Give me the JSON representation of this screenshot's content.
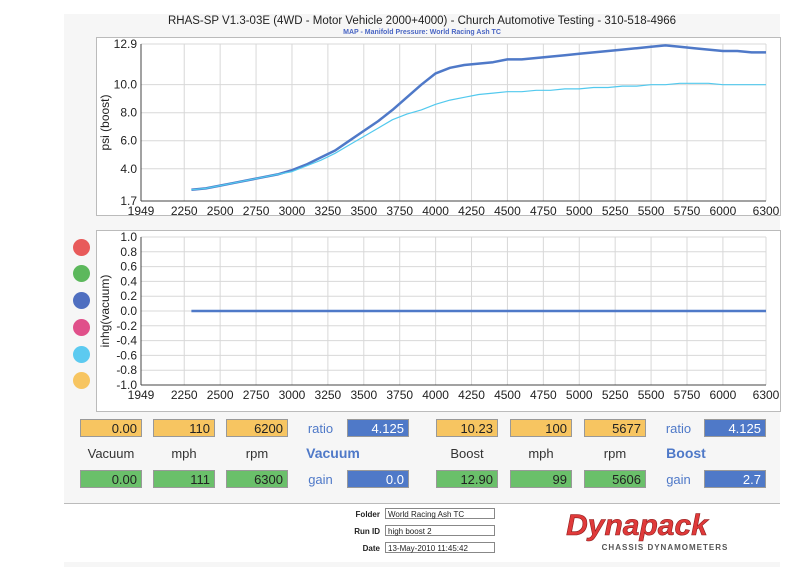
{
  "header": {
    "title": "RHAS-SP V1.3-03E  (4WD - Motor Vehicle 2000+4000) - Church Automotive Testing - 310-518-4966",
    "subtitle": "MAP - Manifold Pressure: World Racing Ash TC"
  },
  "chart_data": [
    {
      "type": "line",
      "ylabel": "psi (boost)",
      "xlim": [
        1949,
        6300
      ],
      "ylim": [
        1.7,
        12.9
      ],
      "x_ticks": [
        1949,
        2250,
        2500,
        2750,
        3000,
        3250,
        3500,
        3750,
        4000,
        4250,
        4500,
        4750,
        5000,
        5250,
        5500,
        5750,
        6000,
        6300
      ],
      "y_ticks": [
        1.7,
        4.0,
        6.0,
        8.0,
        10.0,
        12.9
      ],
      "grid": true,
      "series": [
        {
          "color": "#4f79c8",
          "x": [
            2300,
            2400,
            2500,
            2600,
            2700,
            2800,
            2900,
            3000,
            3100,
            3200,
            3300,
            3400,
            3500,
            3600,
            3700,
            3800,
            3900,
            4000,
            4100,
            4200,
            4300,
            4400,
            4500,
            4600,
            4700,
            4800,
            4900,
            5000,
            5100,
            5200,
            5300,
            5400,
            5500,
            5600,
            5700,
            5800,
            5900,
            6000,
            6100,
            6200,
            6300
          ],
          "y": [
            2.5,
            2.6,
            2.8,
            3.0,
            3.2,
            3.4,
            3.6,
            3.9,
            4.3,
            4.8,
            5.3,
            6.0,
            6.7,
            7.4,
            8.2,
            9.1,
            10.0,
            10.8,
            11.2,
            11.4,
            11.5,
            11.6,
            11.8,
            11.8,
            11.9,
            12.0,
            12.1,
            12.2,
            12.3,
            12.4,
            12.5,
            12.6,
            12.7,
            12.8,
            12.7,
            12.6,
            12.5,
            12.4,
            12.4,
            12.3,
            12.3
          ]
        },
        {
          "color": "#52c9ee",
          "x": [
            2300,
            2400,
            2500,
            2600,
            2700,
            2800,
            2900,
            3000,
            3100,
            3200,
            3300,
            3400,
            3500,
            3600,
            3700,
            3800,
            3900,
            4000,
            4100,
            4200,
            4300,
            4400,
            4500,
            4600,
            4700,
            4800,
            4900,
            5000,
            5100,
            5200,
            5300,
            5400,
            5500,
            5600,
            5700,
            5800,
            5900,
            6000,
            6100,
            6200,
            6300
          ],
          "y": [
            2.5,
            2.6,
            2.8,
            3.0,
            3.2,
            3.4,
            3.6,
            3.8,
            4.2,
            4.6,
            5.1,
            5.7,
            6.3,
            6.9,
            7.5,
            7.9,
            8.2,
            8.6,
            8.9,
            9.1,
            9.3,
            9.4,
            9.5,
            9.5,
            9.6,
            9.6,
            9.7,
            9.7,
            9.8,
            9.8,
            9.9,
            9.9,
            10.0,
            10.0,
            10.1,
            10.1,
            10.1,
            10.0,
            10.0,
            10.0,
            10.0
          ]
        }
      ]
    },
    {
      "type": "line",
      "ylabel": "inhg(vacuum)",
      "xlim": [
        1949,
        6300
      ],
      "ylim": [
        -1.0,
        1.0
      ],
      "x_ticks": [
        1949,
        2250,
        2500,
        2750,
        3000,
        3250,
        3500,
        3750,
        4000,
        4250,
        4500,
        4750,
        5000,
        5250,
        5500,
        5750,
        6000,
        6300
      ],
      "y_ticks": [
        -1.0,
        -0.8,
        -0.6,
        -0.4,
        -0.2,
        0.0,
        0.2,
        0.4,
        0.6,
        0.8,
        1.0
      ],
      "grid": true,
      "series": [
        {
          "color": "#4f79c8",
          "x": [
            2300,
            6300
          ],
          "y": [
            0.0,
            0.0
          ]
        }
      ]
    }
  ],
  "legend_colors": [
    "#e85a5a",
    "#5cb85c",
    "#4f6fc0",
    "#e0508a",
    "#5ccaf0",
    "#f7c561"
  ],
  "readouts": {
    "vacuum": {
      "peak": {
        "vacuum": "0.00",
        "mph": "110",
        "rpm": "6200",
        "ratio_label": "ratio",
        "ratio": "4.125"
      },
      "labels": {
        "vacuum": "Vacuum",
        "mph": "mph",
        "rpm": "rpm",
        "title": "Vacuum"
      },
      "current": {
        "vacuum": "0.00",
        "mph": "111",
        "rpm": "6300",
        "gain_label": "gain",
        "gain": "0.0"
      }
    },
    "boost": {
      "peak": {
        "boost": "10.23",
        "mph": "100",
        "rpm": "5677",
        "ratio_label": "ratio",
        "ratio": "4.125"
      },
      "labels": {
        "boost": "Boost",
        "mph": "mph",
        "rpm": "rpm",
        "title": "Boost"
      },
      "current": {
        "boost": "12.90",
        "mph": "99",
        "rpm": "5606",
        "gain_label": "gain",
        "gain": "2.7"
      }
    }
  },
  "footer": {
    "folder_label": "Folder",
    "folder": "World Racing Ash TC",
    "runid_label": "Run ID",
    "runid": "high boost 2",
    "date_label": "Date",
    "date": "13-May-2010  11:45:42",
    "logo_text": "Dynapack",
    "logo_sub": "CHASSIS DYNAMOMETERS"
  }
}
